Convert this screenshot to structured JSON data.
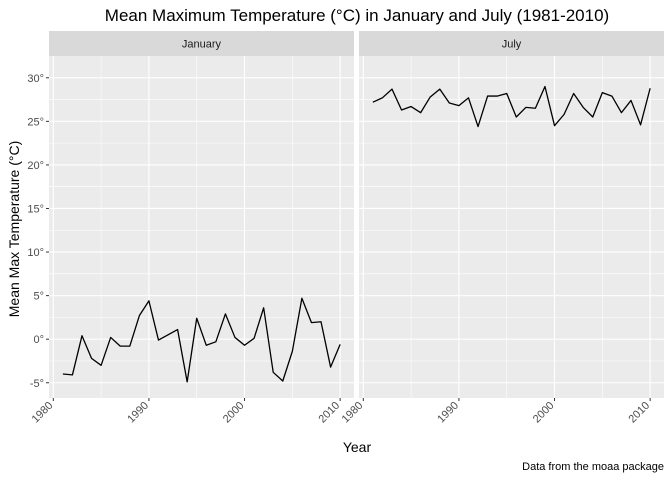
{
  "chart_data": {
    "type": "line",
    "title": "Mean Maximum Temperature (°C) in January and July (1981-2010)",
    "xlabel": "Year",
    "ylabel": "Mean Max Temperature (°C)",
    "caption": "Data from the moaa package",
    "xlim": [
      1980,
      2010
    ],
    "ylim": [
      -5,
      30
    ],
    "x_ticks": [
      1980,
      1990,
      2000,
      2010
    ],
    "y_ticks": [
      -5,
      0,
      5,
      10,
      15,
      20,
      25,
      30
    ],
    "y_tick_labels": [
      "-5°",
      "0°",
      "5°",
      "10°",
      "15°",
      "20°",
      "25°",
      "30°"
    ],
    "grid": true,
    "line_color": "#000000",
    "panel_background": "#EBEBEB",
    "strip_background": "#D9D9D9",
    "x": [
      1981,
      1982,
      1983,
      1984,
      1985,
      1986,
      1987,
      1988,
      1989,
      1990,
      1991,
      1992,
      1993,
      1994,
      1995,
      1996,
      1997,
      1998,
      1999,
      2000,
      2001,
      2002,
      2003,
      2004,
      2005,
      2006,
      2007,
      2008,
      2009,
      2010
    ],
    "panels": [
      {
        "label": "January",
        "values": [
          -4.0,
          -4.1,
          0.4,
          -2.2,
          -3.0,
          0.2,
          -0.8,
          -0.8,
          2.7,
          4.4,
          -0.1,
          0.5,
          1.1,
          -4.9,
          2.4,
          -0.7,
          -0.3,
          2.9,
          0.2,
          -0.7,
          0.1,
          3.6,
          -3.8,
          -4.8,
          -1.4,
          4.7,
          1.9,
          2.0,
          -3.2,
          -0.6
        ]
      },
      {
        "label": "July",
        "values": [
          27.2,
          27.7,
          28.7,
          26.3,
          26.7,
          26.0,
          27.8,
          28.7,
          27.1,
          26.8,
          27.7,
          24.4,
          27.9,
          27.9,
          28.2,
          25.5,
          26.6,
          26.5,
          29.0,
          24.5,
          25.8,
          28.2,
          26.6,
          25.5,
          28.3,
          27.9,
          26.0,
          27.4,
          24.6,
          28.8
        ]
      }
    ]
  }
}
